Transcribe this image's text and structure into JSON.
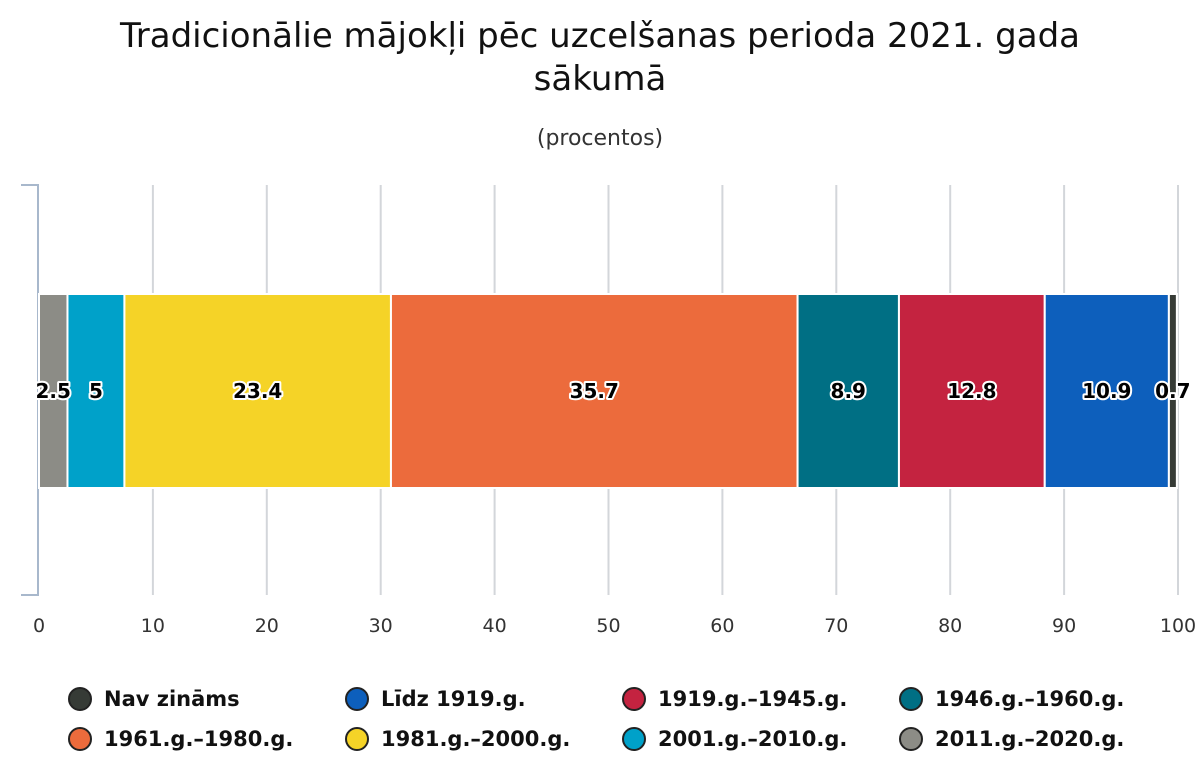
{
  "chart_data": {
    "type": "bar",
    "orientation": "horizontal-stacked",
    "title_lines": [
      "Tradicionālie mājokļi pēc uzcelšanas perioda 2021. gada",
      "sākumā"
    ],
    "subtitle": "(procentos)",
    "xlim": [
      0,
      100
    ],
    "x_ticks": [
      0,
      10,
      20,
      30,
      40,
      50,
      60,
      70,
      80,
      90,
      100
    ],
    "grid": true,
    "legend_position": "bottom",
    "segments": [
      {
        "name": "2011.g.–2020.g.",
        "value": 2.5,
        "color": "#8c8c86"
      },
      {
        "name": "2001.g.–2010.g.",
        "value": 5,
        "color": "#00a1c9"
      },
      {
        "name": "1981.g.–2000.g.",
        "value": 23.4,
        "color": "#f5d327"
      },
      {
        "name": "1961.g.–1980.g.",
        "value": 35.7,
        "color": "#ec6b3c"
      },
      {
        "name": "1946.g.–1960.g.",
        "value": 8.9,
        "color": "#006f84"
      },
      {
        "name": "1919.g.–1945.g.",
        "value": 12.8,
        "color": "#c42340"
      },
      {
        "name": "Līdz 1919.g.",
        "value": 10.9,
        "color": "#0d5fbc"
      },
      {
        "name": "Nav zināms",
        "value": 0.7,
        "color": "#363b36"
      }
    ],
    "legend_order": [
      "Nav zināms",
      "Līdz 1919.g.",
      "1919.g.–1945.g.",
      "1946.g.–1960.g.",
      "1961.g.–1980.g.",
      "1981.g.–2000.g.",
      "2001.g.–2010.g.",
      "2011.g.–2020.g."
    ]
  }
}
